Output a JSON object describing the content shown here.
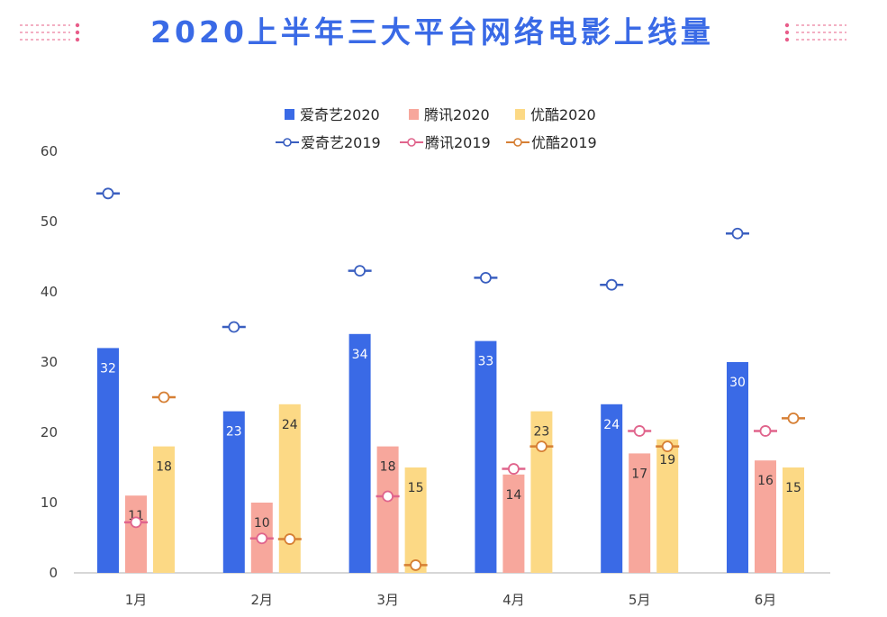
{
  "chart_data": {
    "type": "bar",
    "title": "2020上半年三大平台网络电影上线量",
    "categories": [
      "1月",
      "2月",
      "3月",
      "4月",
      "5月",
      "6月"
    ],
    "ylim": [
      0,
      60
    ],
    "yticks": [
      0,
      10,
      20,
      30,
      40,
      50,
      60
    ],
    "grid": false,
    "legend_position": "top-center",
    "series": [
      {
        "name": "爱奇艺2020",
        "kind": "bar",
        "color": "#3a6ae6",
        "label_color": "#ffffff",
        "values": [
          32,
          23,
          34,
          33,
          24,
          30
        ]
      },
      {
        "name": "腾讯2020",
        "kind": "bar",
        "color": "#f7a79c",
        "label_color": "#333333",
        "values": [
          11,
          10,
          18,
          14,
          17,
          16
        ]
      },
      {
        "name": "优酷2020",
        "kind": "bar",
        "color": "#fcd985",
        "label_color": "#333333",
        "values": [
          18,
          24,
          15,
          23,
          19,
          15
        ]
      },
      {
        "name": "爱奇艺2019",
        "kind": "marker",
        "color": "#3a5fc0",
        "values": [
          54,
          35,
          43,
          42,
          41,
          48.3
        ]
      },
      {
        "name": "腾讯2019",
        "kind": "marker",
        "color": "#e0648c",
        "values": [
          7.2,
          4.9,
          10.9,
          14.8,
          20.2,
          20.2
        ]
      },
      {
        "name": "优酷2019",
        "kind": "marker",
        "color": "#d67f34",
        "values": [
          25,
          4.8,
          1.1,
          18,
          18,
          22
        ]
      }
    ]
  }
}
